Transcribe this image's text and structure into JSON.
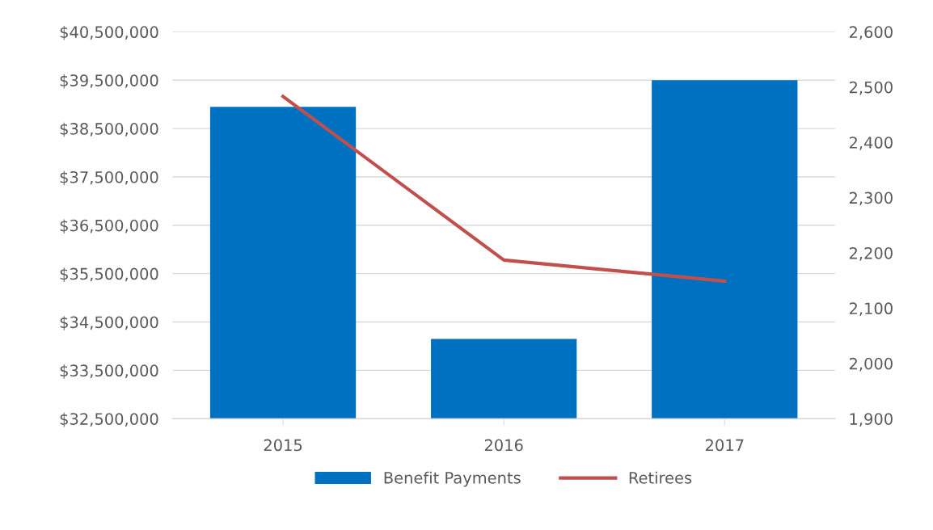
{
  "chart_data": {
    "type": "bar",
    "categories": [
      "2015",
      "2016",
      "2017"
    ],
    "series": [
      {
        "name": "Benefit Payments",
        "color": "#0070c0",
        "values": [
          38950000,
          34150000,
          39500000
        ]
      },
      {
        "name": "Retirees",
        "type": "line",
        "axis": "y2",
        "color": "#c0504d",
        "values": [
          2483,
          2187,
          2149
        ]
      }
    ],
    "ylim": [
      32500000,
      40500000
    ],
    "yticks": [
      {
        "value": 32500000,
        "label": "$32,500,000"
      },
      {
        "value": 33500000,
        "label": "$33,500,000"
      },
      {
        "value": 34500000,
        "label": "$34,500,000"
      },
      {
        "value": 35500000,
        "label": "$35,500,000"
      },
      {
        "value": 36500000,
        "label": "$36,500,000"
      },
      {
        "value": 37500000,
        "label": "$37,500,000"
      },
      {
        "value": 38500000,
        "label": "$38,500,000"
      },
      {
        "value": 39500000,
        "label": "$39,500,000"
      },
      {
        "value": 40500000,
        "label": "$40,500,000"
      }
    ],
    "y2lim": [
      1900,
      2600
    ],
    "y2ticks": [
      {
        "value": 1900,
        "label": "1,900"
      },
      {
        "value": 2000,
        "label": "2,000"
      },
      {
        "value": 2100,
        "label": "2,100"
      },
      {
        "value": 2200,
        "label": "2,200"
      },
      {
        "value": 2300,
        "label": "2,300"
      },
      {
        "value": 2400,
        "label": "2,400"
      },
      {
        "value": 2500,
        "label": "2,500"
      },
      {
        "value": 2600,
        "label": "2,600"
      }
    ],
    "grid": "y",
    "legend": "bottom",
    "marker": "none",
    "line_style": "solid"
  }
}
